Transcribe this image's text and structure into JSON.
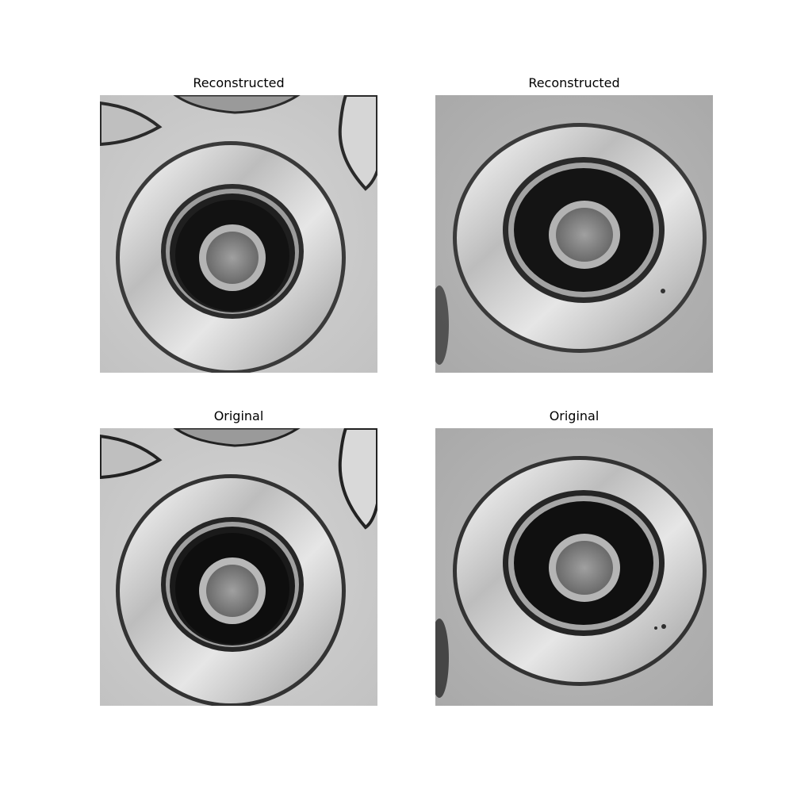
{
  "panels": [
    {
      "title": "Reconstructed",
      "scene": "A"
    },
    {
      "title": "Reconstructed",
      "scene": "B"
    },
    {
      "title": "Original",
      "scene": "A"
    },
    {
      "title": "Original",
      "scene": "B"
    }
  ]
}
